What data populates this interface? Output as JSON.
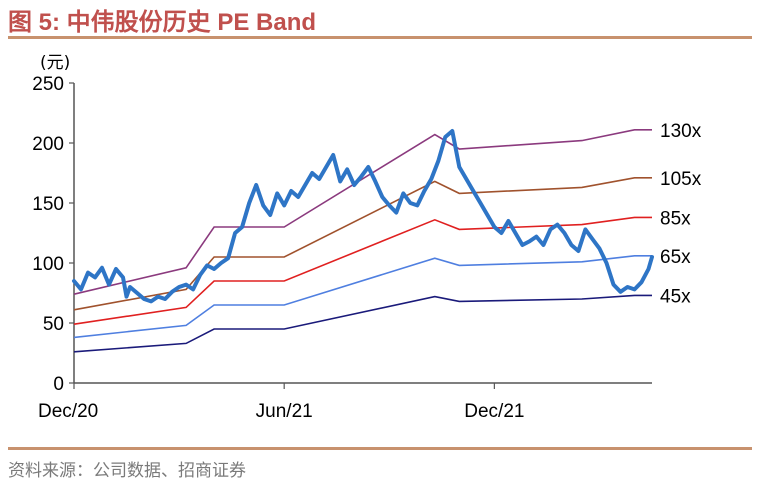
{
  "header": {
    "title": "图 5:  中伟股份历史 PE Band"
  },
  "footer": {
    "source": "资料来源：公司数据、招商证券"
  },
  "chart_data": {
    "type": "line",
    "title": "图 5:  中伟股份历史 PE Band",
    "y_unit": "(元)",
    "ylim": [
      0,
      250
    ],
    "y_ticks": [
      0,
      50,
      100,
      150,
      200,
      250
    ],
    "x_ticks": [
      "Dec/20",
      "Jun/21",
      "Dec/21"
    ],
    "x_range_months": [
      0,
      16.5
    ],
    "x_tick_positions_months": [
      0,
      6,
      12
    ],
    "grid": false,
    "bands": [
      {
        "name": "130x",
        "color": "#8b3a7e",
        "x": [
          0,
          3.2,
          4.0,
          6.0,
          10.3,
          11.0,
          14.5,
          16.0,
          16.5
        ],
        "values": [
          74,
          96,
          130,
          130,
          207,
          195,
          202,
          211,
          211
        ]
      },
      {
        "name": "105x",
        "color": "#a0522d",
        "x": [
          0,
          3.2,
          4.0,
          6.0,
          10.3,
          11.0,
          14.5,
          16.0,
          16.5
        ],
        "values": [
          61,
          78,
          105,
          105,
          168,
          158,
          163,
          171,
          171
        ]
      },
      {
        "name": "85x",
        "color": "#e02020",
        "x": [
          0,
          3.2,
          4.0,
          6.0,
          10.3,
          11.0,
          14.5,
          16.0,
          16.5
        ],
        "values": [
          49,
          63,
          85,
          85,
          136,
          128,
          132,
          138,
          138
        ]
      },
      {
        "name": "65x",
        "color": "#4f7fe0",
        "x": [
          0,
          3.2,
          4.0,
          6.0,
          10.3,
          11.0,
          14.5,
          16.0,
          16.5
        ],
        "values": [
          38,
          48,
          65,
          65,
          104,
          98,
          101,
          106,
          106
        ]
      },
      {
        "name": "45x",
        "color": "#1a1a7a",
        "x": [
          0,
          3.2,
          4.0,
          6.0,
          10.3,
          11.0,
          14.5,
          16.0,
          16.5
        ],
        "values": [
          26,
          33,
          45,
          45,
          72,
          68,
          70,
          73,
          73
        ]
      }
    ],
    "price": {
      "color": "#2e75c6",
      "x": [
        0,
        0.2,
        0.4,
        0.6,
        0.8,
        1.0,
        1.2,
        1.4,
        1.5,
        1.6,
        1.8,
        2.0,
        2.2,
        2.4,
        2.6,
        2.8,
        3.0,
        3.2,
        3.4,
        3.6,
        3.8,
        4.0,
        4.2,
        4.4,
        4.6,
        4.8,
        5.0,
        5.2,
        5.4,
        5.6,
        5.8,
        6.0,
        6.2,
        6.4,
        6.6,
        6.8,
        7.0,
        7.2,
        7.4,
        7.6,
        7.8,
        8.0,
        8.2,
        8.4,
        8.6,
        8.8,
        9.0,
        9.2,
        9.4,
        9.6,
        9.8,
        10.0,
        10.2,
        10.4,
        10.6,
        10.8,
        11.0,
        11.2,
        11.4,
        11.6,
        11.8,
        12.0,
        12.2,
        12.4,
        12.6,
        12.8,
        13.0,
        13.2,
        13.4,
        13.6,
        13.8,
        14.0,
        14.2,
        14.4,
        14.6,
        14.8,
        15.0,
        15.2,
        15.4,
        15.6,
        15.8,
        16.0,
        16.2,
        16.4,
        16.5
      ],
      "values": [
        85,
        78,
        92,
        88,
        96,
        82,
        95,
        88,
        72,
        80,
        75,
        70,
        68,
        72,
        70,
        76,
        80,
        82,
        78,
        90,
        98,
        95,
        100,
        104,
        125,
        130,
        150,
        165,
        148,
        140,
        158,
        148,
        160,
        155,
        165,
        175,
        170,
        180,
        190,
        168,
        178,
        165,
        172,
        180,
        168,
        155,
        148,
        142,
        158,
        150,
        148,
        160,
        170,
        185,
        205,
        210,
        180,
        170,
        160,
        150,
        140,
        130,
        125,
        135,
        125,
        115,
        118,
        122,
        115,
        128,
        132,
        125,
        115,
        110,
        128,
        120,
        112,
        100,
        82,
        76,
        80,
        78,
        84,
        95,
        105
      ]
    }
  }
}
